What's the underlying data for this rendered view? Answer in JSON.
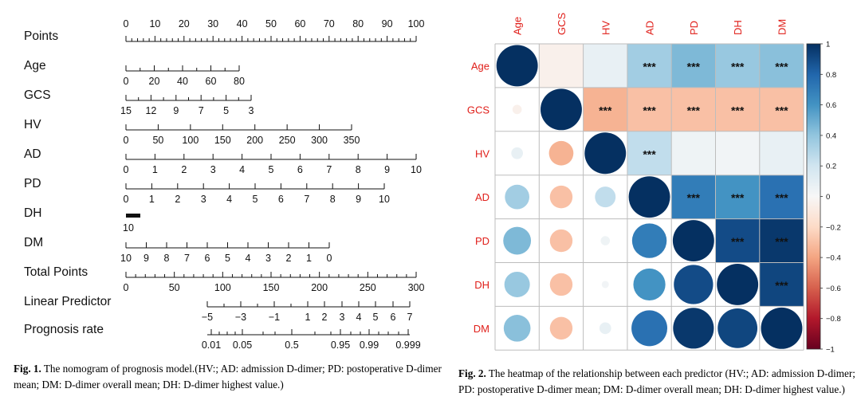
{
  "figure1": {
    "caption_label": "Fig. 1.",
    "caption_text": "The nomogram of prognosis model.(HV:; AD: admission D-dimer; PD: postoperative D-dimer mean; DM: D-dimer overall mean; DH: D-dimer highest value.)",
    "chart_data": {
      "type": "nomogram",
      "rows": [
        {
          "label": "Points",
          "ticks": [
            0,
            10,
            20,
            30,
            40,
            50,
            60,
            70,
            80,
            90,
            100
          ],
          "labels_above": true,
          "minor_per_major": 4
        },
        {
          "label": "Age",
          "ticks": [
            0,
            20,
            40,
            60,
            80
          ],
          "labels_above": false,
          "minor_per_major": 1
        },
        {
          "label": "GCS",
          "ticks": [
            15,
            12,
            9,
            7,
            5,
            3
          ],
          "labels_above": false,
          "minor_per_major": 1
        },
        {
          "label": "HV",
          "ticks": [
            0,
            50,
            100,
            150,
            200,
            250,
            300,
            350
          ],
          "labels_above": false,
          "minor_per_major": 0
        },
        {
          "label": "AD",
          "ticks": [
            0,
            1,
            2,
            3,
            4,
            5,
            6,
            7,
            8,
            9,
            10
          ],
          "labels_above": false,
          "minor_per_major": 0
        },
        {
          "label": "PD",
          "ticks": [
            0,
            1,
            2,
            3,
            4,
            5,
            6,
            7,
            8,
            9,
            10
          ],
          "labels_above": false,
          "minor_per_major": 0
        },
        {
          "label": "DH",
          "ticks": [
            10
          ],
          "labels_above": false,
          "minor_per_major": 0
        },
        {
          "label": "DM",
          "ticks": [
            10,
            9,
            8,
            7,
            6,
            5,
            4,
            3,
            2,
            1,
            0
          ],
          "labels_above": false,
          "minor_per_major": 0
        },
        {
          "label": "Total Points",
          "ticks": [
            0,
            50,
            100,
            150,
            200,
            250,
            300
          ],
          "labels_above": false,
          "minor_per_major": 4
        },
        {
          "label": "Linear Predictor",
          "ticks": [
            -5,
            -3,
            -1,
            1,
            2,
            3,
            4,
            5,
            6,
            7
          ],
          "labels_above": false,
          "minor_per_major": 0
        },
        {
          "label": "Prognosis rate",
          "ticks": [
            0.01,
            0.05,
            0.5,
            0.95,
            0.99,
            0.999
          ],
          "labels_above": false,
          "minor_per_major": 0
        }
      ]
    }
  },
  "figure2": {
    "caption_label": "Fig. 2.",
    "caption_text": "The heatmap of the relationship between each predictor (HV:; AD: admission D-dimer; PD: postoperative D-dimer mean; DM: D-dimer overall mean; DH: D-dimer highest value.)",
    "chart_data": {
      "type": "heatmap",
      "variables": [
        "Age",
        "GCS",
        "HV",
        "AD",
        "PD",
        "DH",
        "DM"
      ],
      "colorbar_ticks": [
        1,
        0.8,
        0.6,
        0.4,
        0.2,
        0,
        -0.2,
        -0.4,
        -0.6,
        -0.8,
        -1
      ],
      "colorbar_range": [
        -1,
        1
      ],
      "significance_label": "***",
      "matrix": [
        [
          1.0,
          -0.05,
          0.08,
          0.35,
          0.45,
          0.38,
          0.42
        ],
        [
          -0.05,
          1.0,
          -0.35,
          -0.3,
          -0.3,
          -0.3,
          -0.3
        ],
        [
          0.08,
          -0.35,
          1.0,
          0.25,
          0.05,
          0.03,
          0.08
        ],
        [
          0.35,
          -0.3,
          0.25,
          1.0,
          0.7,
          0.6,
          0.75
        ],
        [
          0.45,
          -0.3,
          0.05,
          0.7,
          1.0,
          0.9,
          0.97
        ],
        [
          0.38,
          -0.3,
          0.03,
          0.6,
          0.9,
          1.0,
          0.92
        ],
        [
          0.42,
          -0.3,
          0.08,
          0.75,
          0.97,
          0.92,
          1.0
        ]
      ],
      "significant": [
        [
          false,
          false,
          false,
          true,
          true,
          true,
          true
        ],
        [
          false,
          false,
          true,
          true,
          true,
          true,
          true
        ],
        [
          false,
          false,
          false,
          true,
          false,
          false,
          false
        ],
        [
          false,
          false,
          false,
          false,
          true,
          true,
          true
        ],
        [
          false,
          false,
          false,
          false,
          false,
          true,
          true
        ],
        [
          false,
          false,
          false,
          false,
          false,
          false,
          true
        ],
        [
          false,
          false,
          false,
          false,
          false,
          false,
          false
        ]
      ]
    }
  }
}
